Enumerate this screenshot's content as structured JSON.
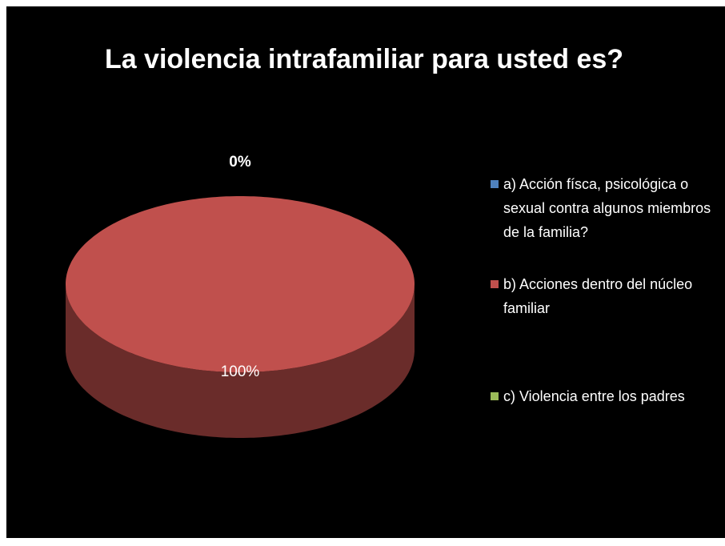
{
  "chart_data": {
    "type": "pie",
    "title": "La violencia intrafamiliar para usted es?",
    "categories": [
      "a) Acción físca, psicológica o sexual contra algunos miembros de la familia?",
      "b) Acciones dentro del núcleo familiar",
      "c) Violencia entre los padres"
    ],
    "values": [
      0,
      100,
      0
    ],
    "value_labels": [
      "0%",
      "100%",
      null
    ],
    "colors": [
      "#4f81bd",
      "#c0504d",
      "#9bbb59"
    ],
    "legend": "right"
  }
}
